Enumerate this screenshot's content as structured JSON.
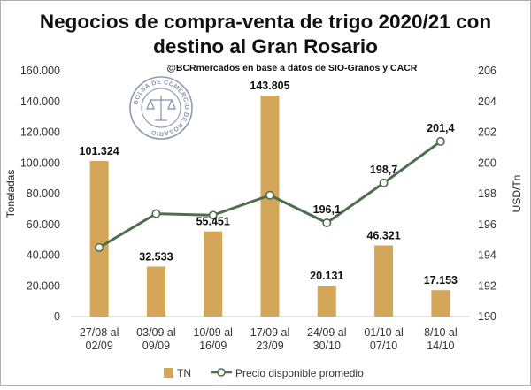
{
  "chart_data": {
    "type": "bar+line",
    "title_line1": "Negocios de compra-venta de trigo 2020/21 con",
    "title_line2": "destino al Gran Rosario",
    "subtitle": "@BCRmercados en base a datos de SIO-Granos y CACR",
    "logo_text": "BOLSA DE COMERCIO DE ROSARIO",
    "ylabel_left": "Toneladas",
    "ylabel_right": "USD/Tn",
    "ylim_left": [
      0,
      160000
    ],
    "ylim_right": [
      190,
      206
    ],
    "yticks_left": [
      "0",
      "20.000",
      "40.000",
      "60.000",
      "80.000",
      "100.000",
      "120.000",
      "140.000",
      "160.000"
    ],
    "yticks_right": [
      "190",
      "192",
      "194",
      "196",
      "198",
      "200",
      "202",
      "204",
      "206"
    ],
    "categories": [
      [
        "27/08 al",
        "02/09"
      ],
      [
        "03/09 al",
        "09/09"
      ],
      [
        "10/09 al",
        "16/09"
      ],
      [
        "17/09 al",
        "23/09"
      ],
      [
        "24/09 al",
        "30/10"
      ],
      [
        "01/10 al",
        "07/10"
      ],
      [
        "8/10 al",
        "14/10"
      ]
    ],
    "series": [
      {
        "name": "TN",
        "type": "bar",
        "axis": "left",
        "color": "#D4A65A",
        "values": [
          101324,
          32533,
          55451,
          143805,
          20131,
          46321,
          17153
        ],
        "labels": [
          "101.324",
          "32.533",
          "55.451",
          "143.805",
          "20.131",
          "46.321",
          "17.153"
        ]
      },
      {
        "name": "Precio disponible promedio",
        "type": "line",
        "axis": "right",
        "color": "#4E6E4E",
        "values": [
          194.5,
          196.7,
          196.6,
          197.9,
          196.1,
          198.7,
          201.4
        ],
        "labels": [
          "",
          "",
          "",
          "",
          "196,1",
          "198,7",
          "201,4"
        ]
      }
    ],
    "grid": false,
    "legend_position": "bottom"
  }
}
